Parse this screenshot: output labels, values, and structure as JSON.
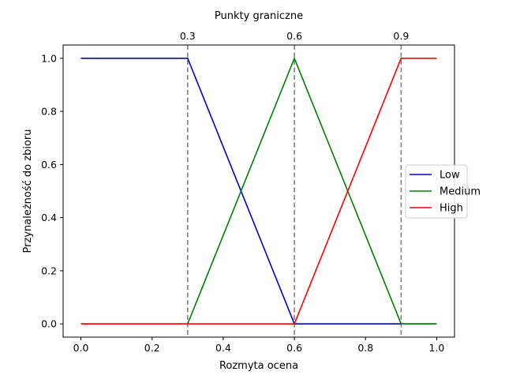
{
  "chart_data": {
    "type": "line",
    "title": "Punkty graniczne",
    "xlabel": "Rozmyta ocena",
    "ylabel": "Przynależność do zbioru",
    "xlim": [
      -0.05,
      1.05
    ],
    "ylim": [
      -0.05,
      1.05
    ],
    "xticks": [
      "0.0",
      "0.2",
      "0.4",
      "0.6",
      "0.8",
      "1.0"
    ],
    "yticks": [
      "0.0",
      "0.2",
      "0.4",
      "0.6",
      "0.8",
      "1.0"
    ],
    "grid": false,
    "legend_position": "center-right",
    "series": [
      {
        "name": "Low",
        "color": "#0000cc",
        "x": [
          0.0,
          0.3,
          0.6,
          0.9,
          1.0
        ],
        "y": [
          1.0,
          1.0,
          0.0,
          0.0,
          0.0
        ]
      },
      {
        "name": "Medium",
        "color": "#008000",
        "x": [
          0.0,
          0.3,
          0.6,
          0.9,
          1.0
        ],
        "y": [
          0.0,
          0.0,
          1.0,
          0.0,
          0.0
        ]
      },
      {
        "name": "High",
        "color": "#ff0000",
        "x": [
          0.0,
          0.3,
          0.6,
          0.9,
          1.0
        ],
        "y": [
          0.0,
          0.0,
          0.0,
          1.0,
          1.0
        ]
      }
    ],
    "boundary_lines": {
      "color": "#808080",
      "style": "dashed",
      "values": [
        0.3,
        0.6,
        0.9
      ],
      "labels": [
        "0.3",
        "0.6",
        "0.9"
      ]
    }
  }
}
